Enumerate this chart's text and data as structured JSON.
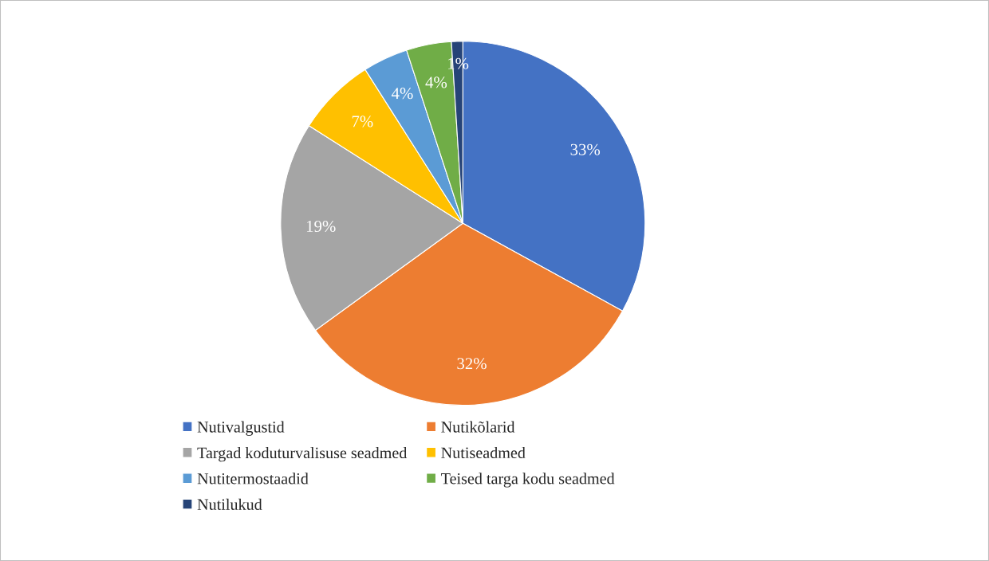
{
  "chart_data": {
    "type": "pie",
    "categories": [
      "Nutivalgustid",
      "Nutikõlarid",
      "Targad koduturvalisuse seadmed",
      "Nutiseadmed",
      "Nutitermostaadid",
      "Teised targa kodu seadmed",
      "Nutilukud"
    ],
    "values": [
      33,
      32,
      19,
      7,
      4,
      4,
      1
    ],
    "value_labels": [
      "33%",
      "32%",
      "19%",
      "7%",
      "4%",
      "4%",
      "1%"
    ],
    "colors": [
      "#4472c4",
      "#ed7d31",
      "#a5a5a5",
      "#ffc000",
      "#5b9bd5",
      "#70ad47",
      "#264478"
    ],
    "legend": "bottom"
  }
}
